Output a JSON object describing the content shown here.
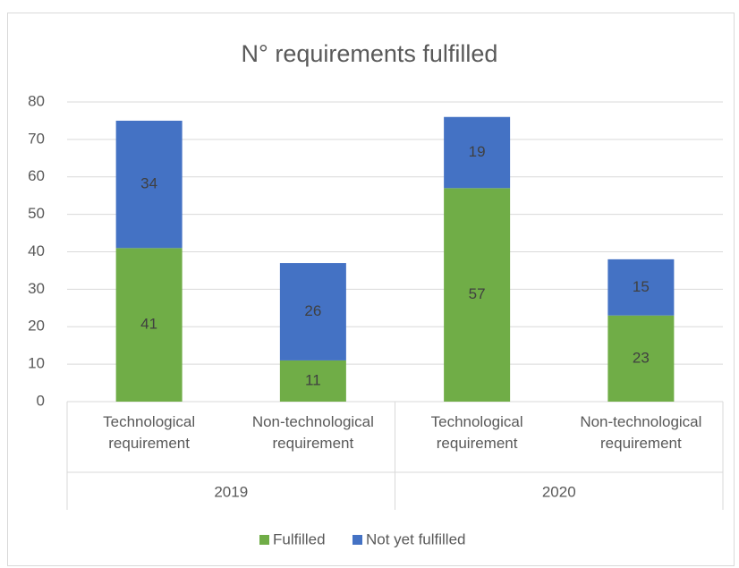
{
  "chart_data": {
    "type": "stacked_bar",
    "title": "N° requirements fulfilled",
    "categories": [
      "Technological requirement",
      "Non-technological requirement",
      "Technological requirement",
      "Non-technological requirement"
    ],
    "groups": [
      "2019",
      "2020"
    ],
    "series": [
      {
        "name": "Fulfilled",
        "color": "#70ad47",
        "values": [
          41,
          11,
          57,
          23
        ]
      },
      {
        "name": "Not yet fulfilled",
        "color": "#4472c4",
        "values": [
          34,
          26,
          19,
          15
        ]
      }
    ],
    "ylim": [
      0,
      80
    ],
    "yticks": [
      0,
      10,
      20,
      30,
      40,
      50,
      60,
      70,
      80
    ],
    "grid": true,
    "legend": "bottom"
  }
}
